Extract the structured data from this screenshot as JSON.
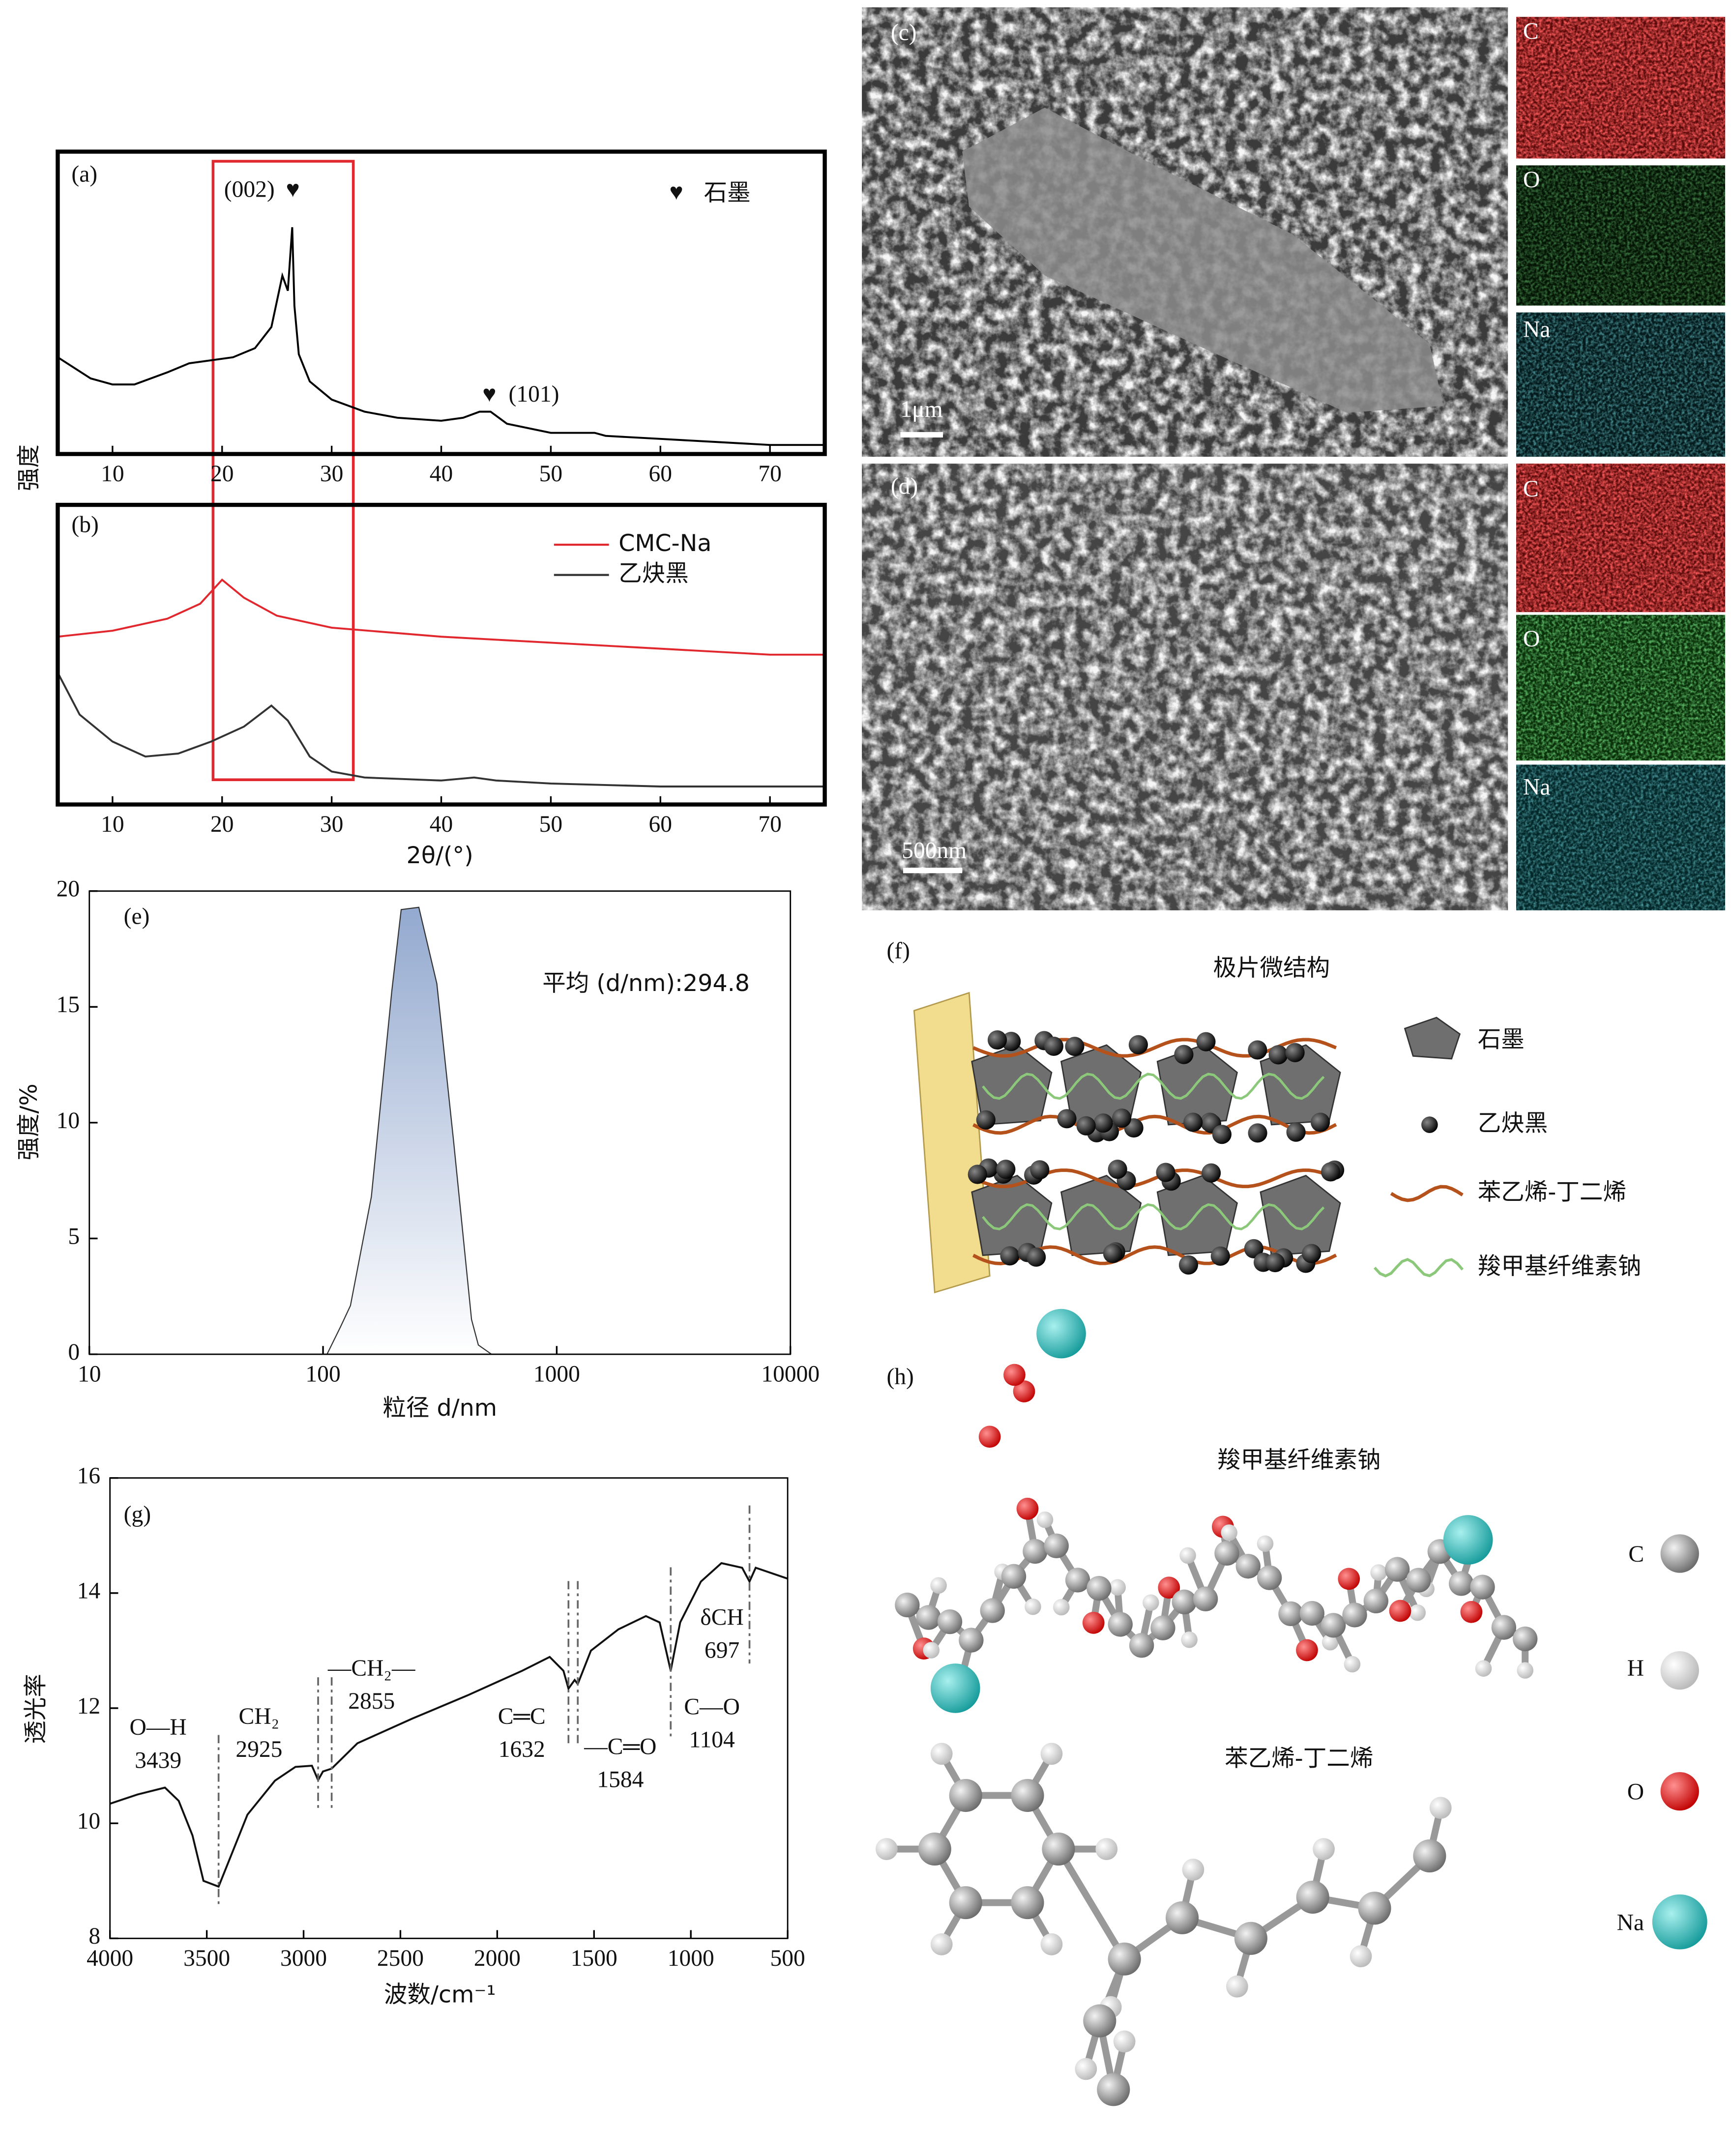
{
  "chart_data": [
    {
      "type": "line",
      "label": "(a)",
      "ylabel": "强度",
      "xlim": [
        5,
        75
      ],
      "xticks": [
        10,
        20,
        30,
        40,
        50,
        60,
        70
      ],
      "ylim": [
        0,
        100
      ],
      "legend": "upper right",
      "annotations": [
        "(002)",
        "(101)"
      ],
      "series": [
        {
          "name": "石墨",
          "marker": "♥",
          "color": "#000000",
          "x": [
            5,
            8,
            10,
            12,
            15,
            17,
            19,
            21,
            23,
            24.5,
            25.5,
            26,
            26.4,
            26.6,
            27,
            28,
            30,
            33,
            36,
            40,
            42,
            43.5,
            44.5,
            46,
            50,
            54,
            55,
            60,
            65,
            70,
            75
          ],
          "values": [
            32,
            25,
            23,
            23,
            27,
            30,
            31,
            32,
            35,
            42,
            59,
            54,
            75,
            49,
            33,
            24,
            18,
            14,
            12,
            11,
            12,
            14,
            14,
            10,
            7,
            7,
            6,
            5,
            4,
            3,
            3
          ]
        }
      ]
    },
    {
      "type": "line",
      "label": "(b)",
      "xlabel": "2θ/(°)",
      "xlim": [
        5,
        75
      ],
      "xticks": [
        10,
        20,
        30,
        40,
        50,
        60,
        70
      ],
      "ylim": [
        0,
        100
      ],
      "legend": "upper right",
      "series": [
        {
          "name": "CMC-Na",
          "color": "#e0282e",
          "x": [
            5,
            10,
            15,
            18,
            20,
            22,
            25,
            30,
            40,
            50,
            60,
            70,
            75
          ],
          "values": [
            56,
            58,
            62,
            67,
            75,
            69,
            63,
            59,
            56,
            54,
            52,
            50,
            50
          ]
        },
        {
          "name": "乙炔黑",
          "color": "#333333",
          "x": [
            5,
            7,
            10,
            13,
            16,
            19,
            22,
            24.5,
            26,
            28,
            30,
            33,
            40,
            43,
            45,
            50,
            60,
            70,
            75
          ],
          "values": [
            44,
            30,
            21,
            16,
            17,
            21,
            26,
            33,
            28,
            16,
            11,
            9,
            8,
            9,
            8,
            7,
            6,
            6,
            6
          ]
        }
      ]
    },
    {
      "type": "area",
      "label": "(e)",
      "xlabel": "粒径 d/nm",
      "ylabel": "强度/%",
      "xscale": "log",
      "xlim": [
        10,
        10000
      ],
      "xticks": [
        10,
        100,
        1000,
        10000
      ],
      "ylim": [
        0,
        20
      ],
      "yticks": [
        0,
        5,
        10,
        15,
        20
      ],
      "annotation": "平均 (d/nm):294.8",
      "series": [
        {
          "color": "#9fb4d6",
          "x": [
            104,
            119,
            131,
            161,
            197,
            216,
            257,
            307,
            362,
            432,
            462,
            526
          ],
          "values": [
            0,
            1.2,
            2.1,
            6.8,
            15.7,
            19.2,
            19.3,
            16.0,
            9.2,
            1.5,
            0.4,
            0
          ]
        }
      ]
    },
    {
      "type": "line",
      "label": "(g)",
      "xlabel": "波数/cm⁻¹",
      "ylabel": "透光率",
      "xlim": [
        4000,
        500
      ],
      "xticks": [
        4000,
        3500,
        3000,
        2500,
        2000,
        1500,
        1000,
        500
      ],
      "ylim": [
        8,
        16
      ],
      "yticks": [
        8,
        10,
        12,
        14,
        16
      ],
      "annotations": [
        {
          "label": "O—H",
          "value": 3439
        },
        {
          "label": "CH₂",
          "value": 2925
        },
        {
          "label": "—CH₂—",
          "value": 2855
        },
        {
          "label": "C═C",
          "value": 1632
        },
        {
          "label": "—C═O",
          "value": 1584
        },
        {
          "label": "C—O",
          "value": 1104
        },
        {
          "label": "δCH",
          "value": 697
        }
      ],
      "series": [
        {
          "color": "#111111",
          "x": [
            4000,
            3858,
            3716,
            3645,
            3574,
            3517,
            3439,
            3390,
            3290,
            3148,
            3042,
            2957,
            2925,
            2900,
            2855,
            2722,
            2438,
            2155,
            1871,
            1729,
            1658,
            1632,
            1600,
            1584,
            1516,
            1374,
            1232,
            1161,
            1104,
            1055,
            948,
            842,
            735,
            697,
            665,
            500
          ],
          "values": [
            10.34,
            10.5,
            10.62,
            10.39,
            9.79,
            9.0,
            8.9,
            9.31,
            10.15,
            10.74,
            10.98,
            11.0,
            10.75,
            10.9,
            10.95,
            11.39,
            11.82,
            12.22,
            12.65,
            12.89,
            12.65,
            12.34,
            12.49,
            12.42,
            13.0,
            13.37,
            13.6,
            13.49,
            12.65,
            13.49,
            14.2,
            14.52,
            14.44,
            14.2,
            14.44,
            14.25
          ]
        }
      ]
    }
  ],
  "panels": {
    "c": {
      "label": "(c)",
      "scale_bar": "1μm",
      "maps": [
        "C",
        "O",
        "Na"
      ]
    },
    "d": {
      "label": "(d)",
      "scale_bar": "500nm",
      "maps": [
        "C",
        "O",
        "Na"
      ]
    },
    "f": {
      "label": "(f)",
      "title": "极片微结构",
      "legend": [
        "石墨",
        "乙炔黑",
        "苯乙烯-丁二烯",
        "羧甲基纤维素钠"
      ]
    },
    "h": {
      "label": "(h)",
      "molecules": [
        "羧甲基纤维素钠",
        "苯乙烯-丁二烯"
      ],
      "atoms": [
        "C",
        "H",
        "O",
        "Na"
      ]
    }
  }
}
